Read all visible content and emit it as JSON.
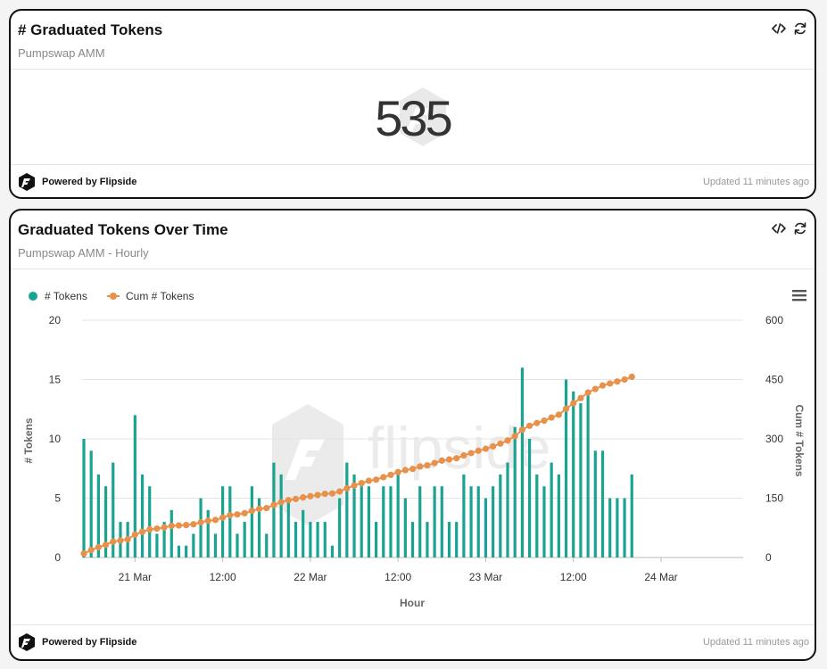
{
  "card1": {
    "title": "# Graduated Tokens",
    "subtitle": "Pumpswap AMM",
    "value": "535",
    "footer_brand": "Powered by Flipside",
    "updated": "Updated 11 minutes ago",
    "icons": [
      "code-icon",
      "refresh-icon",
      "flipside-logo-icon"
    ]
  },
  "card2": {
    "title": "Graduated Tokens Over Time",
    "subtitle": "Pumpswap AMM - Hourly",
    "footer_brand": "Powered by Flipside",
    "updated": "Updated 11 minutes ago",
    "icons": [
      "code-icon",
      "refresh-icon",
      "menu-icon",
      "flipside-logo-icon"
    ],
    "watermark": "flipside"
  },
  "chart_data": {
    "type": "bar",
    "xlabel": "Hour",
    "ylabel": "# Tokens",
    "y2label": "Cum # Tokens",
    "ylim": [
      0,
      20
    ],
    "y2lim": [
      0,
      600
    ],
    "yticks": [
      "0",
      "5",
      "10",
      "15",
      "20"
    ],
    "y2ticks": [
      "0",
      "150",
      "300",
      "450",
      "600"
    ],
    "xticks": [
      "21 Mar",
      "12:00",
      "22 Mar",
      "12:00",
      "23 Mar",
      "12:00",
      "24 Mar"
    ],
    "legend_position": "top-left",
    "grid": true,
    "colors": {
      "bars": "#1aa391",
      "line": "#e8914a"
    },
    "series": [
      {
        "name": "# Tokens",
        "type": "bar",
        "values": [
          10,
          9,
          7,
          6,
          8,
          3,
          3,
          12,
          7,
          6,
          2,
          3,
          4,
          1,
          1,
          2,
          5,
          4,
          2,
          6,
          6,
          2,
          3,
          6,
          5,
          2,
          8,
          7,
          5,
          3,
          4,
          3,
          3,
          3,
          1,
          5,
          8,
          7,
          6,
          6,
          3,
          6,
          6,
          7,
          5,
          3,
          6,
          3,
          6,
          6,
          3,
          3,
          7,
          6,
          6,
          5,
          6,
          7,
          8,
          11,
          16,
          10,
          7,
          6,
          8,
          7,
          15,
          14,
          13,
          14,
          9,
          9,
          5,
          5,
          5,
          7
        ]
      },
      {
        "name": "Cum # Tokens",
        "type": "line",
        "values": [
          10,
          19,
          26,
          32,
          40,
          43,
          46,
          58,
          65,
          71,
          73,
          76,
          80,
          81,
          82,
          84,
          89,
          93,
          95,
          101,
          107,
          109,
          112,
          118,
          123,
          125,
          133,
          140,
          145,
          148,
          152,
          155,
          158,
          161,
          162,
          167,
          175,
          182,
          188,
          194,
          197,
          203,
          209,
          216,
          221,
          224,
          230,
          233,
          239,
          245,
          248,
          251,
          258,
          264,
          270,
          275,
          281,
          288,
          296,
          307,
          323,
          333,
          340,
          346,
          354,
          361,
          376,
          390,
          403,
          417,
          426,
          435,
          440,
          445,
          450,
          457
        ]
      }
    ]
  }
}
